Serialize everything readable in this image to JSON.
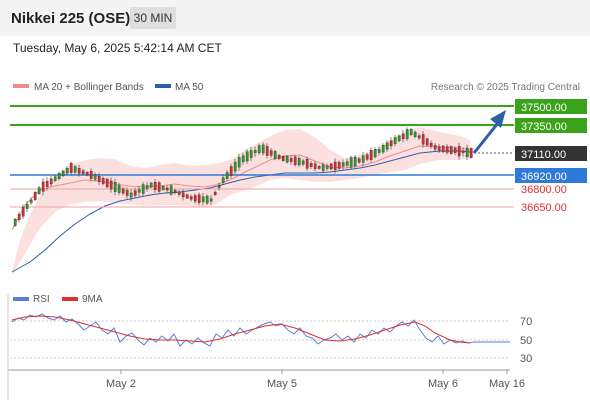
{
  "header": {
    "title": "Nikkei 225 (OSE)",
    "interval": "30 MIN",
    "timestamp": "Tuesday, May 6, 2025 5:42:14 AM CET"
  },
  "legend": {
    "ma20": "MA 20 + Bollinger Bands",
    "ma50": "MA 50",
    "credit": "Research © 2025 Trading Central",
    "ma20_color": "#f28b8b",
    "ma50_color": "#2d5fa8"
  },
  "levels": [
    {
      "value": "37500.00",
      "color": "#3aa31a",
      "style": "filled"
    },
    {
      "value": "37350.00",
      "color": "#3aa31a",
      "style": "filled"
    },
    {
      "value": "37110.00",
      "color": "#333333",
      "style": "filled"
    },
    {
      "value": "36920.00",
      "color": "#2f7ad8",
      "style": "filled"
    },
    {
      "value": "36800.00",
      "color": "#e03030",
      "style": "text"
    },
    {
      "value": "36650.00",
      "color": "#e03030",
      "style": "text"
    }
  ],
  "rsi": {
    "legend_rsi": "RSI",
    "legend_9ma": "9MA",
    "rsi_color": "#5a7fd6",
    "ma_color": "#e03030",
    "ticks": [
      "70",
      "50",
      "30"
    ]
  },
  "xaxis": {
    "ticks": [
      "May 2",
      "May 5",
      "May 6",
      "May 16"
    ]
  },
  "colors": {
    "up": "#2e9a2e",
    "down": "#d03030",
    "band_fill": "#fbdada",
    "arrow": "#2d5fa8"
  }
}
